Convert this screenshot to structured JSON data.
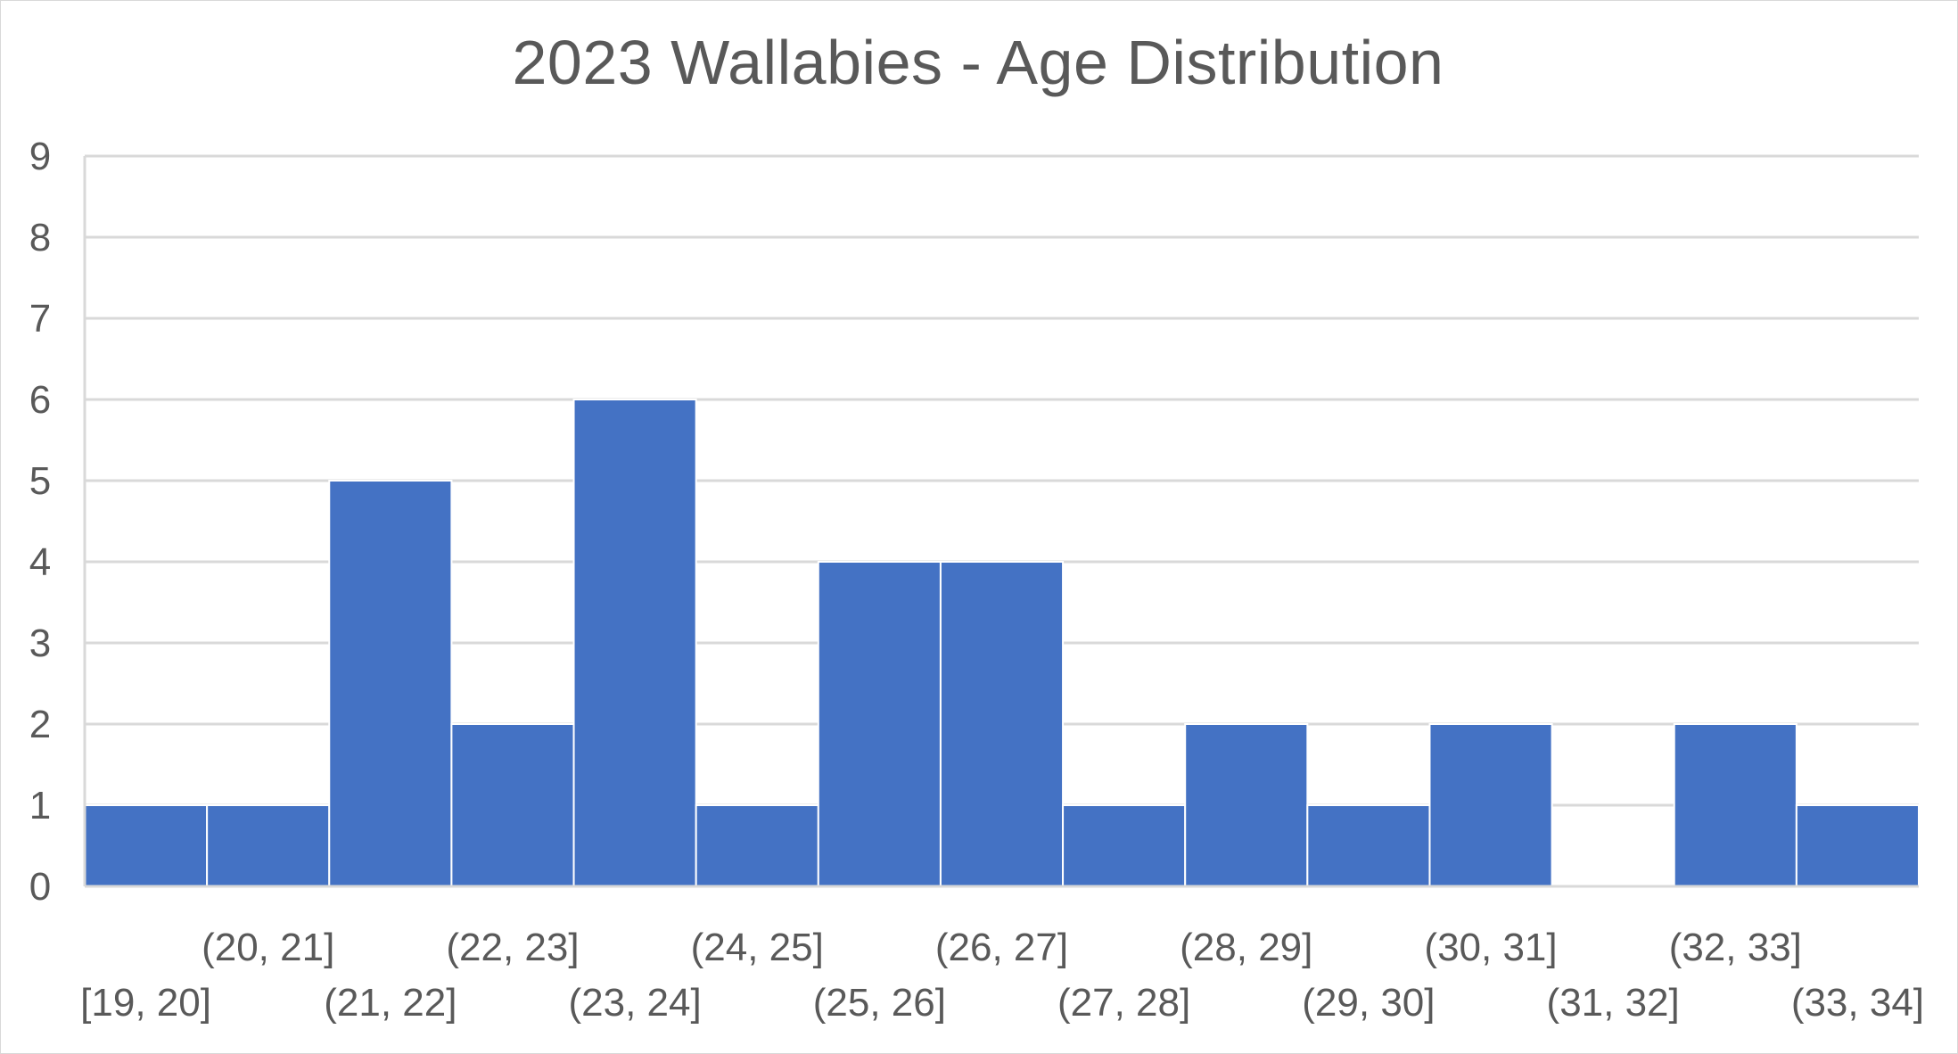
{
  "chart_data": {
    "type": "bar",
    "title": "2023 Wallabies - Age Distribution",
    "xlabel": "",
    "ylabel": "",
    "categories": [
      "[19, 20]",
      "(20, 21]",
      "(21, 22]",
      "(22, 23]",
      "(23, 24]",
      "(24, 25]",
      "(25, 26]",
      "(26, 27]",
      "(27, 28]",
      "(28, 29]",
      "(29, 30]",
      "(30, 31]",
      "(31, 32]",
      "(32, 33]",
      "(33, 34]"
    ],
    "values": [
      1,
      1,
      5,
      2,
      6,
      1,
      4,
      4,
      1,
      2,
      1,
      2,
      0,
      2,
      1
    ],
    "ylim": [
      0,
      9
    ],
    "yticks": [
      "0",
      "1",
      "2",
      "3",
      "4",
      "5",
      "6",
      "7",
      "8",
      "9"
    ],
    "grid": true,
    "legend": "none",
    "colors": {
      "bar": "#4472C4",
      "bar_edge": "#ffffff",
      "grid": "#d9d9d9",
      "text": "#595959"
    }
  }
}
